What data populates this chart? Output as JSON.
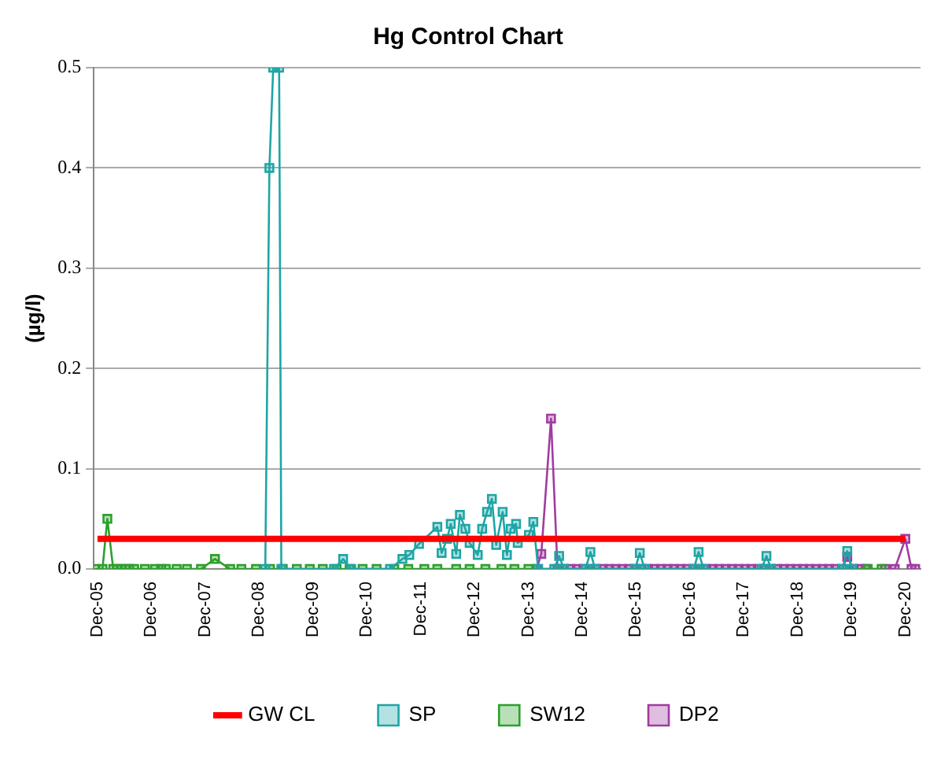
{
  "chart_data": {
    "type": "line",
    "title": "Hg Control Chart",
    "ylabel": "(µg/l)",
    "xlim": [
      "2005-11-06",
      "2021-03-14"
    ],
    "xticks": [
      {
        "value": "2005-12-01",
        "label": "Dec-05"
      },
      {
        "value": "2006-12-01",
        "label": "Dec-06"
      },
      {
        "value": "2007-12-01",
        "label": "Dec-07"
      },
      {
        "value": "2008-12-01",
        "label": "Dec-08"
      },
      {
        "value": "2009-12-01",
        "label": "Dec-09"
      },
      {
        "value": "2010-12-01",
        "label": "Dec-10"
      },
      {
        "value": "2011-12-01",
        "label": "Dec-11"
      },
      {
        "value": "2012-12-01",
        "label": "Dec-12"
      },
      {
        "value": "2013-12-01",
        "label": "Dec-13"
      },
      {
        "value": "2014-12-01",
        "label": "Dec-14"
      },
      {
        "value": "2015-12-01",
        "label": "Dec-15"
      },
      {
        "value": "2016-12-01",
        "label": "Dec-16"
      },
      {
        "value": "2017-12-01",
        "label": "Dec-17"
      },
      {
        "value": "2018-12-01",
        "label": "Dec-18"
      },
      {
        "value": "2019-12-01",
        "label": "Dec-19"
      },
      {
        "value": "2020-12-01",
        "label": "Dec-20"
      }
    ],
    "ylim": [
      0,
      0.5
    ],
    "yticks": [
      {
        "value": 0,
        "label": "0.0"
      },
      0.1,
      0.2,
      0.3,
      0.4,
      0.5
    ],
    "grid": "y",
    "legend": "bottom",
    "marker": "square",
    "series": [
      {
        "name": "GW CL",
        "color": "#ff0000",
        "marker": "none",
        "x": [
          "2005-12-01",
          "2020-12-01"
        ],
        "values": [
          0.03,
          0.03
        ]
      },
      {
        "name": "SP",
        "color": "#1fa5a5",
        "x": [
          "2009-01-12",
          "2009-02-09",
          "2009-03-07",
          "2009-04-16",
          "2009-05-01",
          "2010-04-23",
          "2010-06-24",
          "2010-08-18",
          "2011-05-08",
          "2011-07-31",
          "2011-09-16",
          "2011-11-21",
          "2012-03-24",
          "2012-04-22",
          "2012-05-29",
          "2012-06-23",
          "2012-07-30",
          "2012-08-24",
          "2012-09-30",
          "2012-10-29",
          "2012-12-23",
          "2013-01-22",
          "2013-02-24",
          "2013-03-29",
          "2013-04-27",
          "2013-06-10",
          "2013-07-09",
          "2013-08-03",
          "2013-09-09",
          "2013-09-20",
          "2013-12-05",
          "2014-01-04",
          "2014-02-06",
          "2014-05-26",
          "2014-06-28",
          "2014-07-31",
          "2014-12-24",
          "2015-01-26",
          "2015-02-27",
          "2015-11-25",
          "2015-12-27",
          "2016-01-29",
          "2016-12-27",
          "2017-01-29",
          "2017-03-03",
          "2018-04-01",
          "2018-05-04",
          "2018-06-06",
          "2019-10-01",
          "2019-11-03",
          "2019-12-05"
        ],
        "values": [
          0,
          0.4,
          0.5,
          0.5,
          0,
          0,
          0.01,
          0,
          0,
          0.01,
          0.014,
          0.025,
          0.042,
          0.016,
          0.03,
          0.045,
          0.015,
          0.054,
          0.04,
          0.026,
          0.014,
          0.04,
          0.057,
          0.07,
          0.024,
          0.057,
          0.014,
          0.04,
          0.045,
          0.026,
          0.034,
          0.047,
          0,
          0,
          0.013,
          0,
          0,
          0.017,
          0,
          0,
          0.016,
          0,
          0,
          0.017,
          0,
          0,
          0.013,
          0,
          0,
          0.018,
          0
        ]
      },
      {
        "name": "SW12",
        "color": "#2ca02c",
        "x": [
          "2005-11-17",
          "2006-01-04",
          "2006-02-06",
          "2006-03-18",
          "2006-04-12",
          "2006-05-11",
          "2006-06-10",
          "2006-07-05",
          "2006-08-07",
          "2006-10-19",
          "2006-12-27",
          "2007-02-06",
          "2007-03-10",
          "2007-05-22",
          "2007-07-31",
          "2007-11-03",
          "2008-02-06",
          "2008-05-19",
          "2008-08-03",
          "2008-11-10",
          "2009-02-13",
          "2009-05-11",
          "2009-08-14",
          "2009-11-10",
          "2010-02-06",
          "2010-05-11",
          "2010-08-07",
          "2010-11-03",
          "2011-02-06",
          "2011-06-06",
          "2011-09-09",
          "2011-12-27",
          "2012-03-24",
          "2012-07-30",
          "2012-10-29",
          "2013-02-13",
          "2013-06-02",
          "2013-08-29",
          "2013-12-02",
          "2020-03-21",
          "2020-06-23"
        ],
        "values": [
          0,
          0,
          0.05,
          0,
          0,
          0,
          0,
          0,
          0,
          0,
          0,
          0,
          0,
          0,
          0,
          0,
          0.01,
          0,
          0,
          0,
          0,
          0,
          0,
          0,
          0,
          0,
          0,
          0,
          0,
          0,
          0,
          0,
          0,
          0,
          0,
          0,
          0,
          0,
          0,
          0,
          0
        ]
      },
      {
        "name": "DP2",
        "color": "#a03ca0",
        "x": [
          "2014-01-26",
          "2014-02-27",
          "2014-05-04",
          "2014-06-17",
          "2014-07-31",
          "2014-09-13",
          "2014-10-27",
          "2014-12-10",
          "2015-01-22",
          "2015-03-07",
          "2015-04-20",
          "2015-06-03",
          "2015-07-17",
          "2015-08-30",
          "2015-10-13",
          "2015-11-25",
          "2016-01-08",
          "2016-02-21",
          "2016-04-05",
          "2016-05-19",
          "2016-07-02",
          "2016-08-15",
          "2016-09-28",
          "2016-11-11",
          "2016-12-24",
          "2017-02-06",
          "2017-03-21",
          "2017-05-04",
          "2017-06-17",
          "2017-07-31",
          "2017-09-13",
          "2017-10-27",
          "2017-12-10",
          "2018-01-22",
          "2018-03-07",
          "2018-04-20",
          "2018-06-03",
          "2018-07-17",
          "2018-08-30",
          "2018-10-13",
          "2018-11-25",
          "2019-01-08",
          "2019-02-21",
          "2019-04-05",
          "2019-05-19",
          "2019-07-02",
          "2019-08-15",
          "2019-09-28",
          "2019-11-03",
          "2019-12-17",
          "2020-01-30",
          "2020-03-07",
          "2020-07-16",
          "2020-09-20",
          "2020-12-01",
          "2021-01-12",
          "2021-02-06"
        ],
        "values": [
          0,
          0.015,
          0.15,
          0,
          0,
          0,
          0,
          0,
          0,
          0,
          0,
          0,
          0,
          0,
          0,
          0,
          0,
          0,
          0,
          0,
          0,
          0,
          0,
          0,
          0,
          0,
          0,
          0,
          0,
          0,
          0,
          0,
          0,
          0,
          0,
          0,
          0,
          0,
          0,
          0,
          0,
          0,
          0,
          0,
          0,
          0,
          0,
          0,
          0.012,
          0,
          0,
          0,
          0,
          0,
          0.03,
          0,
          0
        ]
      }
    ]
  }
}
